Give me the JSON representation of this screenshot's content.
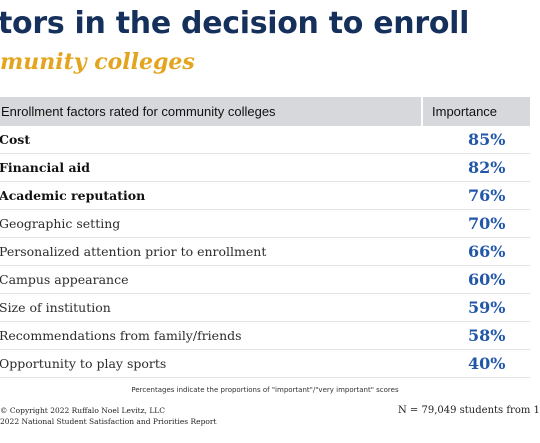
{
  "header": {
    "title": "tors in the decision to enroll",
    "subtitle": "munity colleges"
  },
  "chart_data": {
    "type": "table",
    "columns": [
      "Enrollment factors rated for community colleges",
      "Importance"
    ],
    "rows": [
      {
        "factor": "Cost",
        "importance": "85%",
        "bold": true
      },
      {
        "factor": "Financial aid",
        "importance": "82%",
        "bold": true
      },
      {
        "factor": "Academic reputation",
        "importance": "76%",
        "bold": true
      },
      {
        "factor": "Geographic setting",
        "importance": "70%",
        "bold": false
      },
      {
        "factor": "Personalized attention prior to enrollment",
        "importance": "66%",
        "bold": false
      },
      {
        "factor": "Campus appearance",
        "importance": "60%",
        "bold": false
      },
      {
        "factor": "Size of institution",
        "importance": "59%",
        "bold": false
      },
      {
        "factor": "Recommendations from family/friends",
        "importance": "58%",
        "bold": false
      },
      {
        "factor": "Opportunity to play sports",
        "importance": "40%",
        "bold": false
      }
    ]
  },
  "footer": {
    "note": "Percentages indicate the proportions of \"important\"/\"very important\" scores",
    "copyright": "© Copyright 2022 Ruffalo Noel Levitz, LLC",
    "report": "2022 National Student Satisfaction and Priorities Report",
    "sample": "N = 79,049  students  from 1"
  },
  "colors": {
    "title": "#16305c",
    "subtitle": "#e3a51f",
    "header_bg": "#d6d8db",
    "percent": "#2257a8"
  }
}
